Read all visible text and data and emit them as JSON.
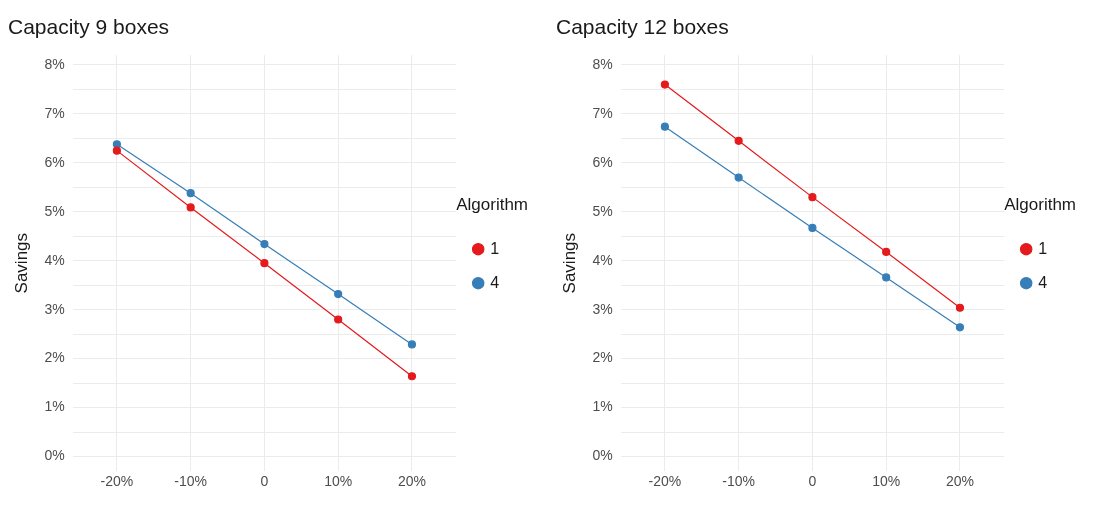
{
  "chart_data": [
    {
      "type": "line",
      "title": "Capacity 9 boxes",
      "ylabel": "Savings",
      "x": [
        -20,
        -10,
        0,
        10,
        20
      ],
      "xlim": [
        -26,
        26
      ],
      "xticks": [
        {
          "value": -20,
          "label": "-20%"
        },
        {
          "value": -10,
          "label": "-10%"
        },
        {
          "value": 0,
          "label": "0"
        },
        {
          "value": 10,
          "label": "10%"
        },
        {
          "value": 20,
          "label": "20%"
        }
      ],
      "ylim": [
        -0.3,
        8.2
      ],
      "yticks": [
        {
          "value": 0,
          "label": "0%"
        },
        {
          "value": 0.5,
          "label": null
        },
        {
          "value": 1,
          "label": "1%"
        },
        {
          "value": 1.5,
          "label": null
        },
        {
          "value": 2,
          "label": "2%"
        },
        {
          "value": 2.5,
          "label": null
        },
        {
          "value": 3,
          "label": "3%"
        },
        {
          "value": 3.5,
          "label": null
        },
        {
          "value": 4,
          "label": "4%"
        },
        {
          "value": 4.5,
          "label": null
        },
        {
          "value": 5,
          "label": "5%"
        },
        {
          "value": 5.5,
          "label": null
        },
        {
          "value": 6,
          "label": "6%"
        },
        {
          "value": 6.5,
          "label": null
        },
        {
          "value": 7,
          "label": "7%"
        },
        {
          "value": 7.5,
          "label": null
        },
        {
          "value": 8,
          "label": "8%"
        }
      ],
      "grid": true,
      "legend": "right",
      "legend_title": "Algorithm",
      "marker": "circle",
      "line_style": "solid",
      "series": [
        {
          "name": "1",
          "color": "#e41a1c",
          "values": [
            6.25,
            5.09,
            3.95,
            2.8,
            1.64
          ]
        },
        {
          "name": "4",
          "color": "#377eb8",
          "values": [
            6.38,
            5.38,
            4.34,
            3.32,
            2.29
          ]
        }
      ]
    },
    {
      "type": "line",
      "title": "Capacity 12 boxes",
      "ylabel": "Savings",
      "x": [
        -20,
        -10,
        0,
        10,
        20
      ],
      "xlim": [
        -26,
        26
      ],
      "xticks": [
        {
          "value": -20,
          "label": "-20%"
        },
        {
          "value": -10,
          "label": "-10%"
        },
        {
          "value": 0,
          "label": "0"
        },
        {
          "value": 10,
          "label": "10%"
        },
        {
          "value": 20,
          "label": "20%"
        }
      ],
      "ylim": [
        -0.3,
        8.2
      ],
      "yticks": [
        {
          "value": 0,
          "label": "0%"
        },
        {
          "value": 0.5,
          "label": null
        },
        {
          "value": 1,
          "label": "1%"
        },
        {
          "value": 1.5,
          "label": null
        },
        {
          "value": 2,
          "label": "2%"
        },
        {
          "value": 2.5,
          "label": null
        },
        {
          "value": 3,
          "label": "3%"
        },
        {
          "value": 3.5,
          "label": null
        },
        {
          "value": 4,
          "label": "4%"
        },
        {
          "value": 4.5,
          "label": null
        },
        {
          "value": 5,
          "label": "5%"
        },
        {
          "value": 5.5,
          "label": null
        },
        {
          "value": 6,
          "label": "6%"
        },
        {
          "value": 6.5,
          "label": null
        },
        {
          "value": 7,
          "label": "7%"
        },
        {
          "value": 7.5,
          "label": null
        },
        {
          "value": 8,
          "label": "8%"
        }
      ],
      "grid": true,
      "legend": "right",
      "legend_title": "Algorithm",
      "marker": "circle",
      "line_style": "solid",
      "series": [
        {
          "name": "1",
          "color": "#e41a1c",
          "values": [
            7.6,
            6.45,
            5.3,
            4.18,
            3.04
          ]
        },
        {
          "name": "4",
          "color": "#377eb8",
          "values": [
            6.74,
            5.7,
            4.67,
            3.66,
            2.64
          ]
        }
      ]
    }
  ]
}
